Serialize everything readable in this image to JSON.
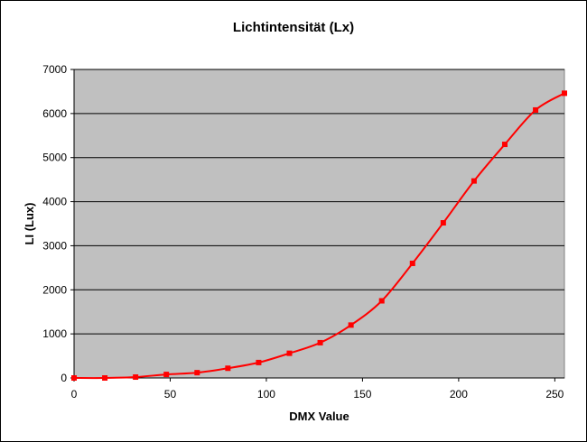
{
  "chart_data": {
    "type": "line",
    "title": "Lichtintensität (Lx)",
    "xlabel": "DMX Value",
    "ylabel": "LI (Lux)",
    "xlim": [
      0,
      255
    ],
    "ylim": [
      0,
      7000
    ],
    "xticks": [
      0,
      50,
      100,
      150,
      200,
      250
    ],
    "yticks": [
      0,
      1000,
      2000,
      3000,
      4000,
      5000,
      6000,
      7000
    ],
    "grid": "horizontal",
    "legend": "none",
    "series": [
      {
        "x": [
          0,
          16,
          32,
          48,
          64,
          80,
          96,
          112,
          128,
          144,
          160,
          176,
          192,
          208,
          224,
          240,
          255
        ],
        "values": [
          0,
          0,
          20,
          80,
          120,
          220,
          350,
          560,
          800,
          1200,
          1750,
          2600,
          3520,
          4470,
          5300,
          6080,
          6460
        ]
      }
    ],
    "colors": {
      "plot_area": "#c0c0c0",
      "line": "#ff0000",
      "marker": "#ff0000",
      "gridline": "#000000"
    }
  }
}
